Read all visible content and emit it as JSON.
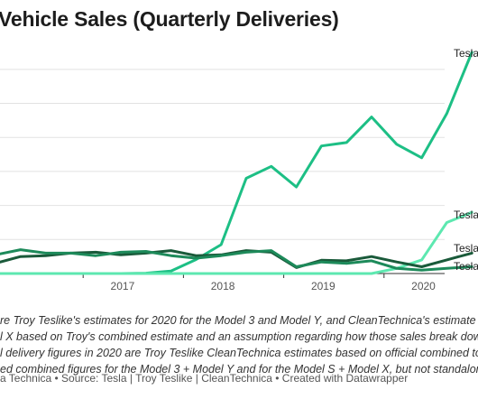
{
  "chart_data": {
    "type": "line",
    "title": "Vehicle Sales (Quarterly Deliveries)",
    "x": [
      "2016-Q1",
      "2016-Q2",
      "2016-Q3",
      "2016-Q4",
      "2017-Q1",
      "2017-Q2",
      "2017-Q3",
      "2017-Q4",
      "2018-Q1",
      "2018-Q2",
      "2018-Q3",
      "2018-Q4",
      "2019-Q1",
      "2019-Q2",
      "2019-Q3",
      "2019-Q4",
      "2020-Q1",
      "2020-Q2",
      "2020-Q3",
      "2020-Q4"
    ],
    "x_ticks": [
      "2017",
      "2018",
      "2019",
      "2020"
    ],
    "ylim": [
      0,
      130000
    ],
    "grid": true,
    "series": [
      {
        "name": "Tesla",
        "color": "#1dbf85",
        "values": [
          0,
          0,
          0,
          0,
          0,
          0,
          200,
          1500,
          8200,
          17000,
          56000,
          63000,
          50900,
          75000,
          77000,
          92000,
          76000,
          68000,
          94000,
          130000
        ]
      },
      {
        "name": "Tesla",
        "color": "#5de8b0",
        "values": [
          0,
          0,
          0,
          0,
          0,
          0,
          0,
          0,
          0,
          0,
          0,
          0,
          0,
          0,
          0,
          0,
          3000,
          8000,
          30000,
          36000
        ]
      },
      {
        "name": "Tesla",
        "color": "#1a5a3a",
        "values": [
          6000,
          10000,
          10500,
          12000,
          12500,
          11000,
          12000,
          13500,
          10500,
          11000,
          13500,
          12500,
          3500,
          7800,
          7500,
          10000,
          6800,
          4000,
          8000,
          12000
        ]
      },
      {
        "name": "Tesla",
        "color": "#1d8a5a",
        "values": [
          11000,
          14000,
          12000,
          12000,
          10500,
          12500,
          13000,
          10500,
          9000,
          10500,
          12500,
          13500,
          4000,
          6800,
          6000,
          7500,
          3000,
          2000,
          3000,
          4000
        ]
      }
    ]
  },
  "notes": [
    "re Troy Teslike's estimates for 2020 for the Model 3 and Model Y, and CleanTechnica's estimate fo",
    "l X based on Troy's combined estimate and an assumption regarding how those sales break dowr",
    "l delivery figures in 2020 are Troy Teslike CleanTechnica estimates based on official combined tot",
    "ed combined figures for the Model 3 + Model Y and for the Model S + Model X, but not standalone"
  ],
  "source": "a Technica • Source: Tesla | Troy Teslike | CleanTechnica • Created with Datawrapper"
}
